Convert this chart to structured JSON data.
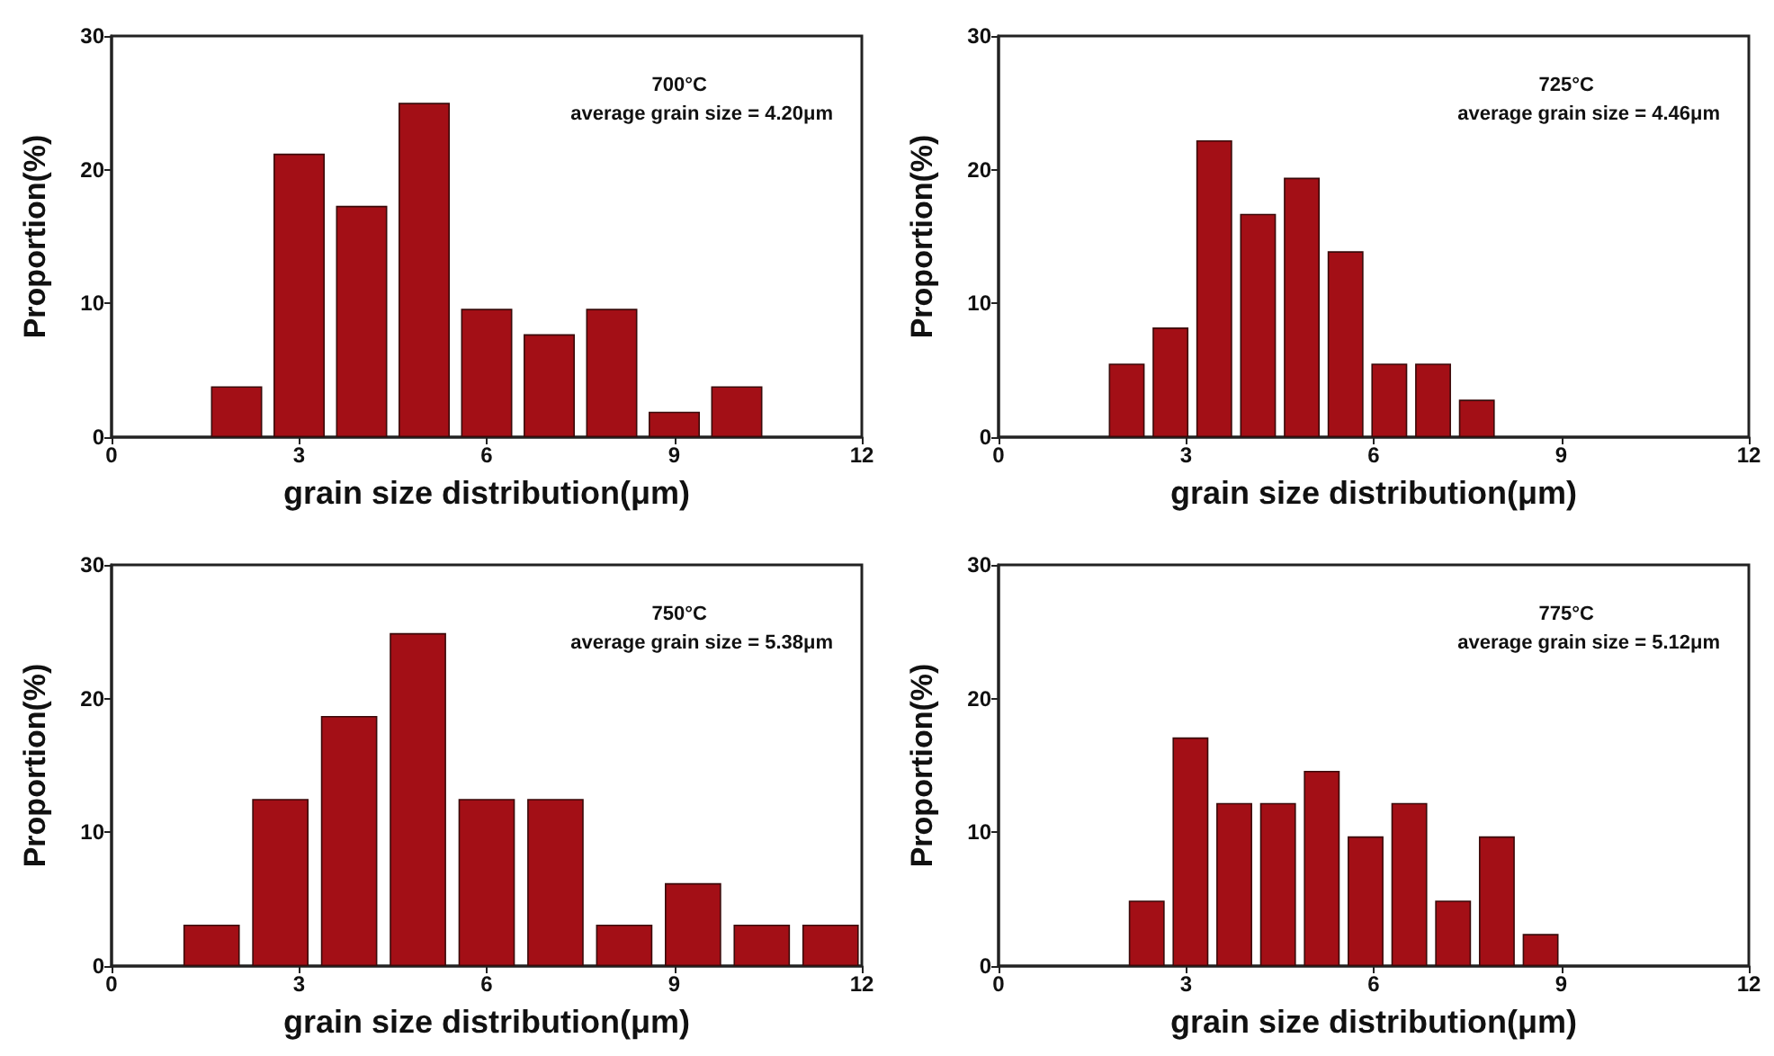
{
  "chart_data": [
    {
      "type": "bar",
      "xlabel": "grain size distribution(μm)",
      "ylabel": "Proportion(%)",
      "annotations": [
        "700°C",
        "average grain size = 4.20μm"
      ],
      "x": [
        2,
        3,
        4,
        5,
        6,
        7,
        8,
        9,
        10
      ],
      "values": [
        3.8,
        21.2,
        17.3,
        25,
        9.6,
        7.7,
        9.6,
        1.9,
        3.8
      ],
      "color": "#a30f16",
      "xlim": [
        0,
        12
      ],
      "xticks": [
        0,
        3,
        6,
        9,
        12
      ],
      "ylim": [
        0,
        30
      ],
      "yticks": [
        0,
        10,
        20,
        30
      ],
      "grid": false
    },
    {
      "type": "bar",
      "xlabel": "grain size distribution(μm)",
      "ylabel": "Proportion(%)",
      "annotations": [
        "725°C",
        "average grain size = 4.46μm"
      ],
      "x": [
        2.05,
        2.75,
        3.45,
        4.15,
        4.85,
        5.55,
        6.25,
        6.95,
        7.65
      ],
      "values": [
        5.5,
        8.2,
        22.2,
        16.7,
        19.4,
        13.9,
        5.5,
        5.5,
        2.8
      ],
      "color": "#a30f16",
      "xlim": [
        0,
        12
      ],
      "xticks": [
        0,
        3,
        6,
        9,
        12
      ],
      "ylim": [
        0,
        30
      ],
      "yticks": [
        0,
        10,
        20,
        30
      ],
      "grid": false
    },
    {
      "type": "bar",
      "xlabel": "grain size distribution(μm)",
      "ylabel": "Proportion(%)",
      "annotations": [
        "750°C",
        "average grain size = 5.38μm"
      ],
      "x": [
        1.6,
        2.7,
        3.8,
        4.9,
        6.0,
        7.1,
        8.2,
        9.3,
        10.4,
        11.5
      ],
      "values": [
        3.1,
        12.5,
        18.7,
        24.9,
        12.5,
        12.5,
        3.1,
        6.2,
        3.1,
        3.1
      ],
      "color": "#a30f16",
      "xlim": [
        0,
        12
      ],
      "xticks": [
        0,
        3,
        6,
        9,
        12
      ],
      "ylim": [
        0,
        30
      ],
      "yticks": [
        0,
        10,
        20,
        30
      ],
      "grid": false
    },
    {
      "type": "bar",
      "xlabel": "grain size distribution(μm)",
      "ylabel": "Proportion(%)",
      "annotations": [
        "775°C",
        "average grain size = 5.12μm"
      ],
      "x": [
        2.37,
        3.07,
        3.77,
        4.47,
        5.17,
        5.87,
        6.57,
        7.27,
        7.97,
        8.67
      ],
      "values": [
        4.9,
        17.1,
        12.2,
        12.2,
        14.6,
        9.7,
        12.2,
        4.9,
        9.7,
        2.4
      ],
      "color": "#a30f16",
      "xlim": [
        0,
        12
      ],
      "xticks": [
        0,
        3,
        6,
        9,
        12
      ],
      "ylim": [
        0,
        30
      ],
      "yticks": [
        0,
        10,
        20,
        30
      ],
      "grid": false
    }
  ]
}
